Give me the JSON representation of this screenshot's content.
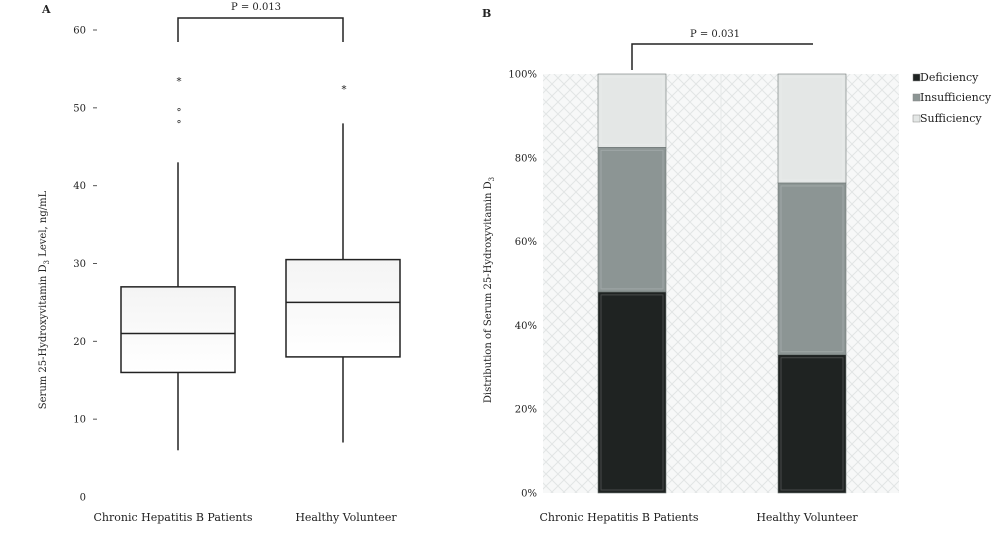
{
  "chart_data": [
    {
      "panel_label": "A",
      "type": "box",
      "ylabel_parts": [
        "Serum 25-Hydroxyvitamin D",
        "3",
        " Level, ng/mL"
      ],
      "ylim": [
        0,
        60
      ],
      "yticks": [
        0,
        10,
        20,
        30,
        40,
        50,
        60
      ],
      "categories": [
        "Chronic Hepatitis B Patients",
        "Healthy Volunteer"
      ],
      "boxes": [
        {
          "whisker_low": 6,
          "q1": 16,
          "median": 21,
          "q3": 27,
          "whisker_high": 43,
          "outliers": [
            {
              "value": 48,
              "marker": "°"
            },
            {
              "value": 49.5,
              "marker": "°"
            },
            {
              "value": 53.5,
              "marker": "*"
            }
          ]
        },
        {
          "whisker_low": 7,
          "q1": 18,
          "median": 25,
          "q3": 30.5,
          "whisker_high": 48,
          "outliers": [
            {
              "value": 52.5,
              "marker": "*"
            }
          ]
        }
      ],
      "annotation": "P = 0.013"
    },
    {
      "panel_label": "B",
      "type": "bar",
      "stacked": true,
      "ylabel_parts": [
        "Distribution of Serum 25-Hydroxyvitamin D",
        "3",
        ""
      ],
      "ylim": [
        0,
        100
      ],
      "yticks": [
        "0%",
        "20%",
        "40%",
        "60%",
        "80%",
        "100%"
      ],
      "categories": [
        "Chronic Hepatitis B Patients",
        "Healthy Volunteer"
      ],
      "series": [
        {
          "name": "Deficiency",
          "color": "#1f2322",
          "values": [
            48,
            33
          ]
        },
        {
          "name": "Insufficiency",
          "color": "#8c9594",
          "values": [
            34.5,
            41
          ]
        },
        {
          "name": "Sufficiency",
          "color": "#e4e7e6",
          "values": [
            17.5,
            26
          ]
        }
      ],
      "legend_position": "top-right",
      "annotation": "P = 0.031"
    }
  ]
}
